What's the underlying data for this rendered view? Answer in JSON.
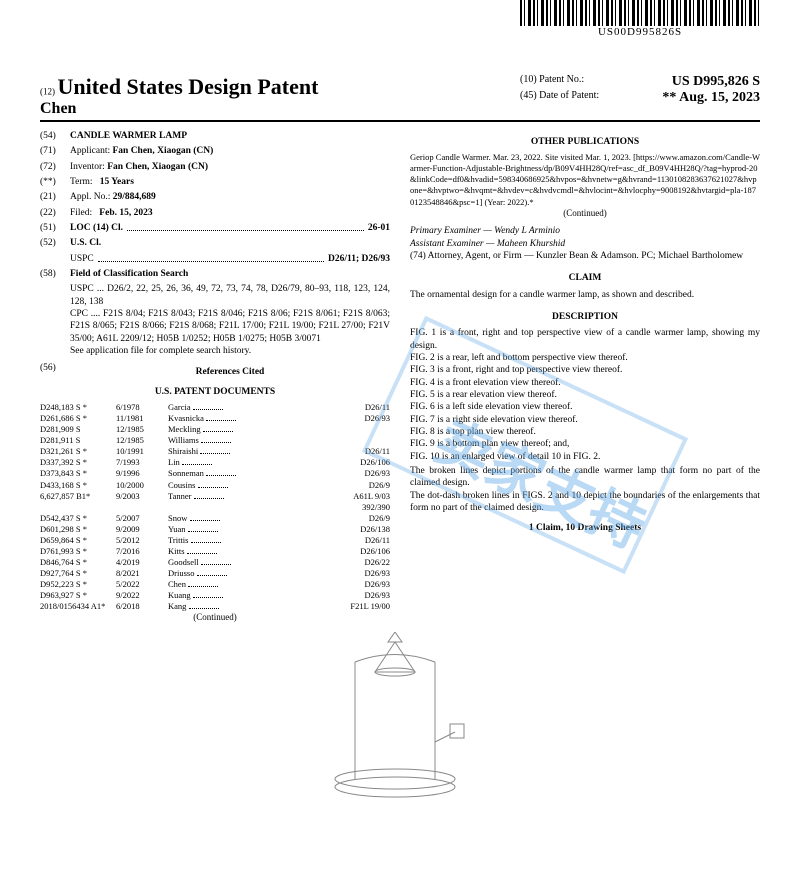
{
  "barcode_text": "US00D995826S",
  "header": {
    "prefix12": "(12)",
    "title": "United States Design Patent",
    "author": "Chen",
    "patent_no_label": "(10) Patent No.:",
    "patent_no": "US D995,826 S",
    "date_label": "(45) Date of Patent:",
    "date": "** Aug. 15, 2023"
  },
  "left": {
    "f54": {
      "n": "(54)",
      "label": "CANDLE WARMER LAMP"
    },
    "f71": {
      "n": "(71)",
      "label": "Applicant:",
      "val": "Fan Chen, Xiaogan (CN)"
    },
    "f72": {
      "n": "(72)",
      "label": "Inventor:",
      "val": "Fan Chen, Xiaogan (CN)"
    },
    "fstar": {
      "n": "(**)",
      "label": "Term:",
      "val": "15 Years"
    },
    "f21": {
      "n": "(21)",
      "label": "Appl. No.:",
      "val": "29/884,689"
    },
    "f22": {
      "n": "(22)",
      "label": "Filed:",
      "val": "Feb. 15, 2023"
    },
    "f51": {
      "n": "(51)",
      "label": "LOC (14) Cl.",
      "val": "26-01"
    },
    "f52": {
      "n": "(52)",
      "label": "U.S. Cl.",
      "sub": "USPC",
      "val": "D26/11; D26/93"
    },
    "f58": {
      "n": "(58)",
      "label": "Field of Classification Search",
      "uspc": "USPC ... D26/2, 22, 25, 26, 36, 49, 72, 73, 74, 78, D26/79, 80–93, 118, 123, 124, 128, 138",
      "cpc": "CPC .... F21S 8/04; F21S 8/043; F21S 8/046; F21S 8/06; F21S 8/061; F21S 8/063; F21S 8/065; F21S 8/066; F21S 8/068; F21L 17/00; F21L 19/00; F21L 27/00; F21V 35/00; A61L 2209/12; H05B 1/0252; H05B 1/0275; H05B 3/0071",
      "note": "See application file for complete search history."
    },
    "f56": {
      "n": "(56)",
      "label": "References Cited"
    },
    "refsubhead": "U.S. PATENT DOCUMENTS",
    "refs": [
      {
        "a": "D248,183 S *",
        "b": "6/1978",
        "c": "Garcia",
        "d": "D26/11"
      },
      {
        "a": "D261,686 S *",
        "b": "11/1981",
        "c": "Kvasnicka",
        "d": "D26/93"
      },
      {
        "a": "D281,909 S",
        "b": "12/1985",
        "c": "Meckling",
        "d": ""
      },
      {
        "a": "D281,911 S",
        "b": "12/1985",
        "c": "Williams",
        "d": ""
      },
      {
        "a": "D321,261 S *",
        "b": "10/1991",
        "c": "Shiraishi",
        "d": "D26/11"
      },
      {
        "a": "D337,392 S *",
        "b": "7/1993",
        "c": "Lin",
        "d": "D26/106"
      },
      {
        "a": "D373,843 S *",
        "b": "9/1996",
        "c": "Sonneman",
        "d": "D26/93"
      },
      {
        "a": "D433,168 S *",
        "b": "10/2000",
        "c": "Cousins",
        "d": "D26/9"
      },
      {
        "a": "6,627,857 B1*",
        "b": "9/2003",
        "c": "Tanner",
        "d": "A61L 9/03 392/390"
      },
      {
        "a": "D542,437 S *",
        "b": "5/2007",
        "c": "Snow",
        "d": "D26/9"
      },
      {
        "a": "D601,298 S *",
        "b": "9/2009",
        "c": "Yuan",
        "d": "D26/138"
      },
      {
        "a": "D659,864 S *",
        "b": "5/2012",
        "c": "Trittis",
        "d": "D26/11"
      },
      {
        "a": "D761,993 S *",
        "b": "7/2016",
        "c": "Kitts",
        "d": "D26/106"
      },
      {
        "a": "D846,764 S *",
        "b": "4/2019",
        "c": "Goodsell",
        "d": "D26/22"
      },
      {
        "a": "D927,764 S *",
        "b": "8/2021",
        "c": "Driusso",
        "d": "D26/93"
      },
      {
        "a": "D952,223 S *",
        "b": "5/2022",
        "c": "Chen",
        "d": "D26/93"
      },
      {
        "a": "D963,927 S *",
        "b": "9/2022",
        "c": "Kuang",
        "d": "D26/93"
      },
      {
        "a": "2018/0156434 A1*",
        "b": "6/2018",
        "c": "Kang",
        "d": "F21L 19/00"
      }
    ],
    "continued": "(Continued)"
  },
  "right": {
    "otherpub": "OTHER PUBLICATIONS",
    "pub_text": "Geriop Candle Warmer. Mar. 23, 2022. Site visited Mar. 1, 2023. [https://www.amazon.com/Candle-Warmer-Function-Adjustable-Brightness/dp/B09V4HH28Q/ref=asc_df_B09V4HH28Q/?tag=hyprod-20&linkCode=df0&hvadid=598340686925&hvpos=&hvnetw=g&hvrand=1130108283637621027&hvpone=&hvptwo=&hvqmt=&hvdev=c&hvdvcmdl=&hvlocint=&hvlocphy=9008192&hvtargid=pla-1870123548846&psc=1] (Year: 2022).*",
    "continued": "(Continued)",
    "examiner_p": "Primary Examiner — Wendy L Arminio",
    "examiner_a": "Assistant Examiner — Maheen Khurshid",
    "attorney": "(74) Attorney, Agent, or Firm — Kunzler Bean & Adamson. PC; Michael Bartholomew",
    "claim_h": "CLAIM",
    "claim_t": "The ornamental design for a candle warmer lamp, as shown and described.",
    "desc_h": "DESCRIPTION",
    "figs": [
      "FIG. 1 is a front, right and top perspective view of a candle warmer lamp, showing my design.",
      "FIG. 2 is a rear, left and bottom perspective view thereof.",
      "FIG. 3 is a front, right and top perspective view thereof.",
      "FIG. 4 is a front elevation view thereof.",
      "FIG. 5 is a rear elevation view thereof.",
      "FIG. 6 is a left side elevation view thereof.",
      "FIG. 7 is a right side elevation view thereof.",
      "FIG. 8 is a top plan view thereof.",
      "FIG. 9 is a bottom plan view thereof; and,",
      "FIG. 10 is an enlarged view of detail 10 in FIG. 2."
    ],
    "broken": "The broken lines depict portions of the candle warmer lamp that form no part of the claimed design.",
    "dotdash": "The dot-dash broken lines in FIGS. 2 and 10 depict the boundaries of the enlargements that form no part of the claimed design.",
    "footer": "1 Claim, 10 Drawing Sheets"
  },
  "watermark": "卖家支持"
}
